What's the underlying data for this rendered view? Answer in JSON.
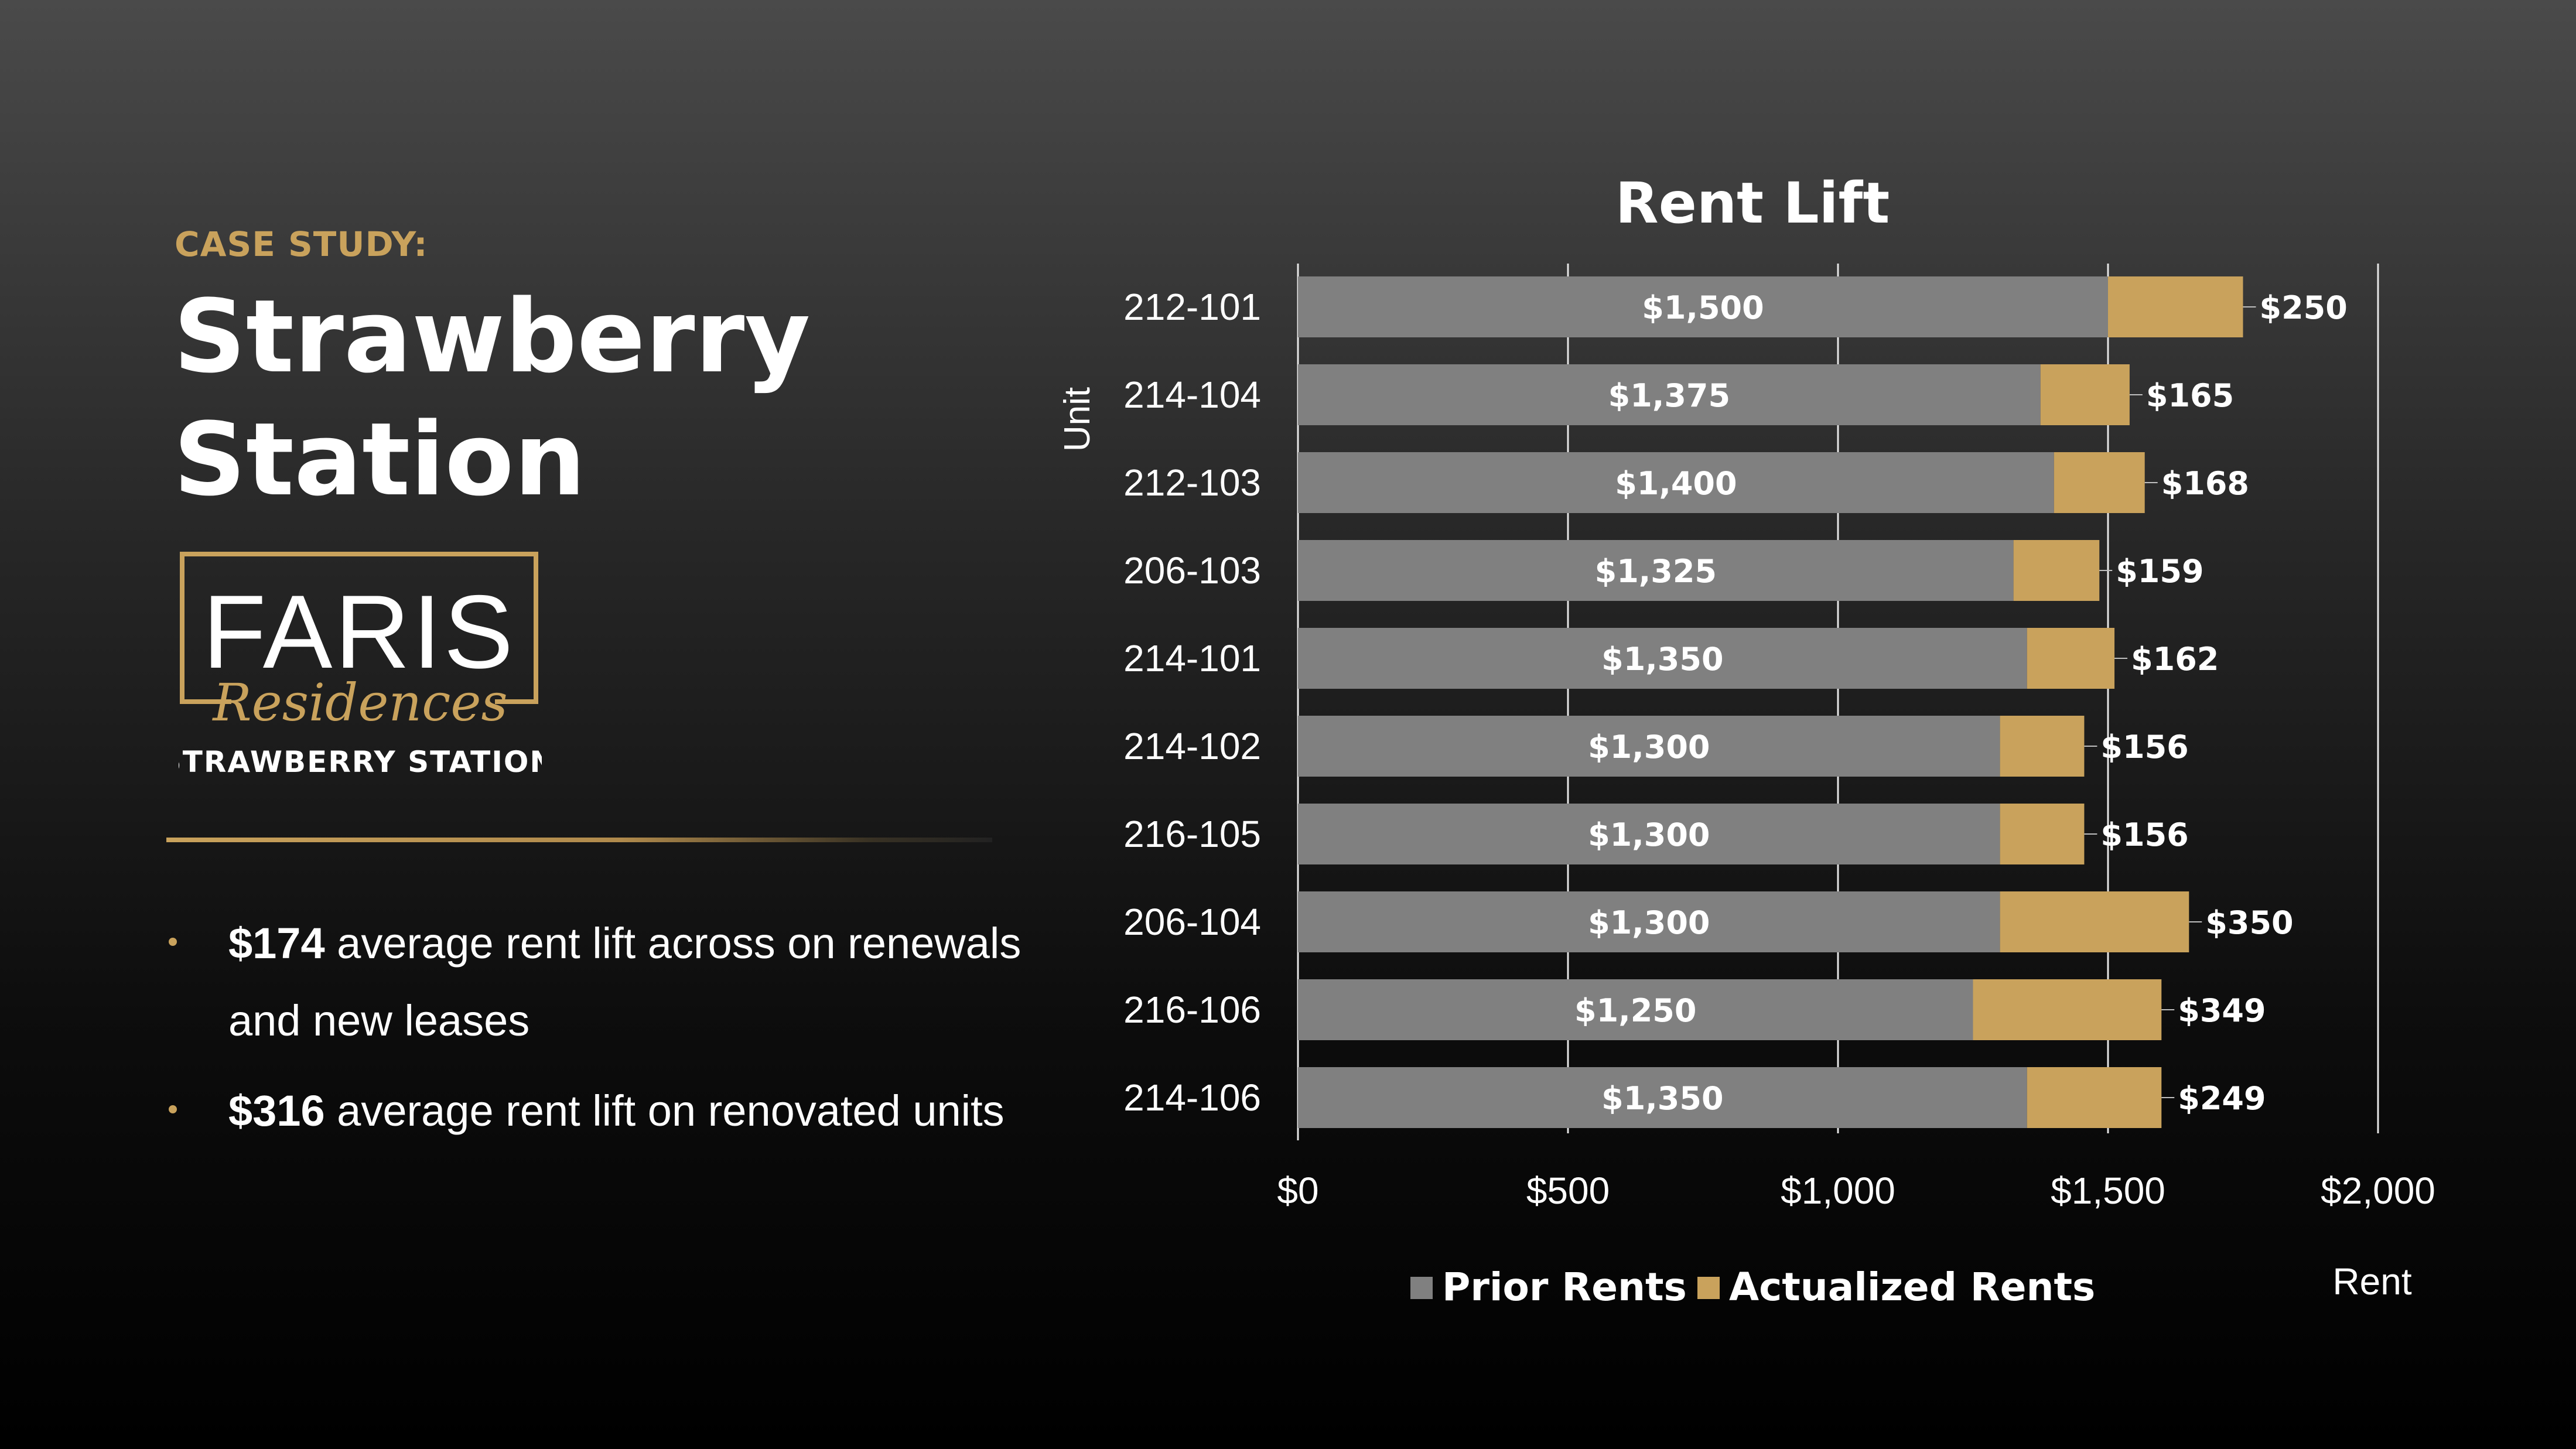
{
  "left": {
    "eyebrow": "CASE STUDY:",
    "title_line1": "Strawberry",
    "title_line2": "Station",
    "logo": {
      "brand": "FARIS",
      "script": "Residences",
      "subtitle": "STRAWBERRY STATION"
    },
    "bullets": [
      {
        "value": "$174",
        "text": " average rent lift across on renewals and new leases"
      },
      {
        "value": "$316",
        "text": " average rent lift on renovated units"
      }
    ]
  },
  "colors": {
    "prior": "#808080",
    "actualized": "#c9a25c",
    "accent": "#c9a25c"
  },
  "chart_data": {
    "type": "bar",
    "orientation": "horizontal",
    "stacked": true,
    "title": "Rent Lift",
    "xlabel": "Rent",
    "ylabel": "Unit",
    "xlim": [
      0,
      2000
    ],
    "xticks": [
      "$0",
      "$500",
      "$1,000",
      "$1,500",
      "$2,000"
    ],
    "xtick_values": [
      0,
      500,
      1000,
      1500,
      2000
    ],
    "grid": true,
    "legend": "bottom",
    "categories": [
      "212-101",
      "214-104",
      "212-103",
      "206-103",
      "214-101",
      "214-102",
      "216-105",
      "206-104",
      "216-106",
      "214-106"
    ],
    "series": [
      {
        "name": "Prior Rents",
        "values": [
          1500,
          1375,
          1400,
          1325,
          1350,
          1300,
          1300,
          1300,
          1250,
          1350
        ],
        "labels": [
          "$1,500",
          "$1,375",
          "$1,400",
          "$1,325",
          "$1,350",
          "$1,300",
          "$1,300",
          "$1,300",
          "$1,250",
          "$1,350"
        ]
      },
      {
        "name": "Actualized Rents",
        "values": [
          250,
          165,
          168,
          159,
          162,
          156,
          156,
          350,
          349,
          249
        ],
        "labels": [
          "$250",
          "$165",
          "$168",
          "$159",
          "$162",
          "$156",
          "$156",
          "$350",
          "$349",
          "$249"
        ]
      }
    ]
  }
}
